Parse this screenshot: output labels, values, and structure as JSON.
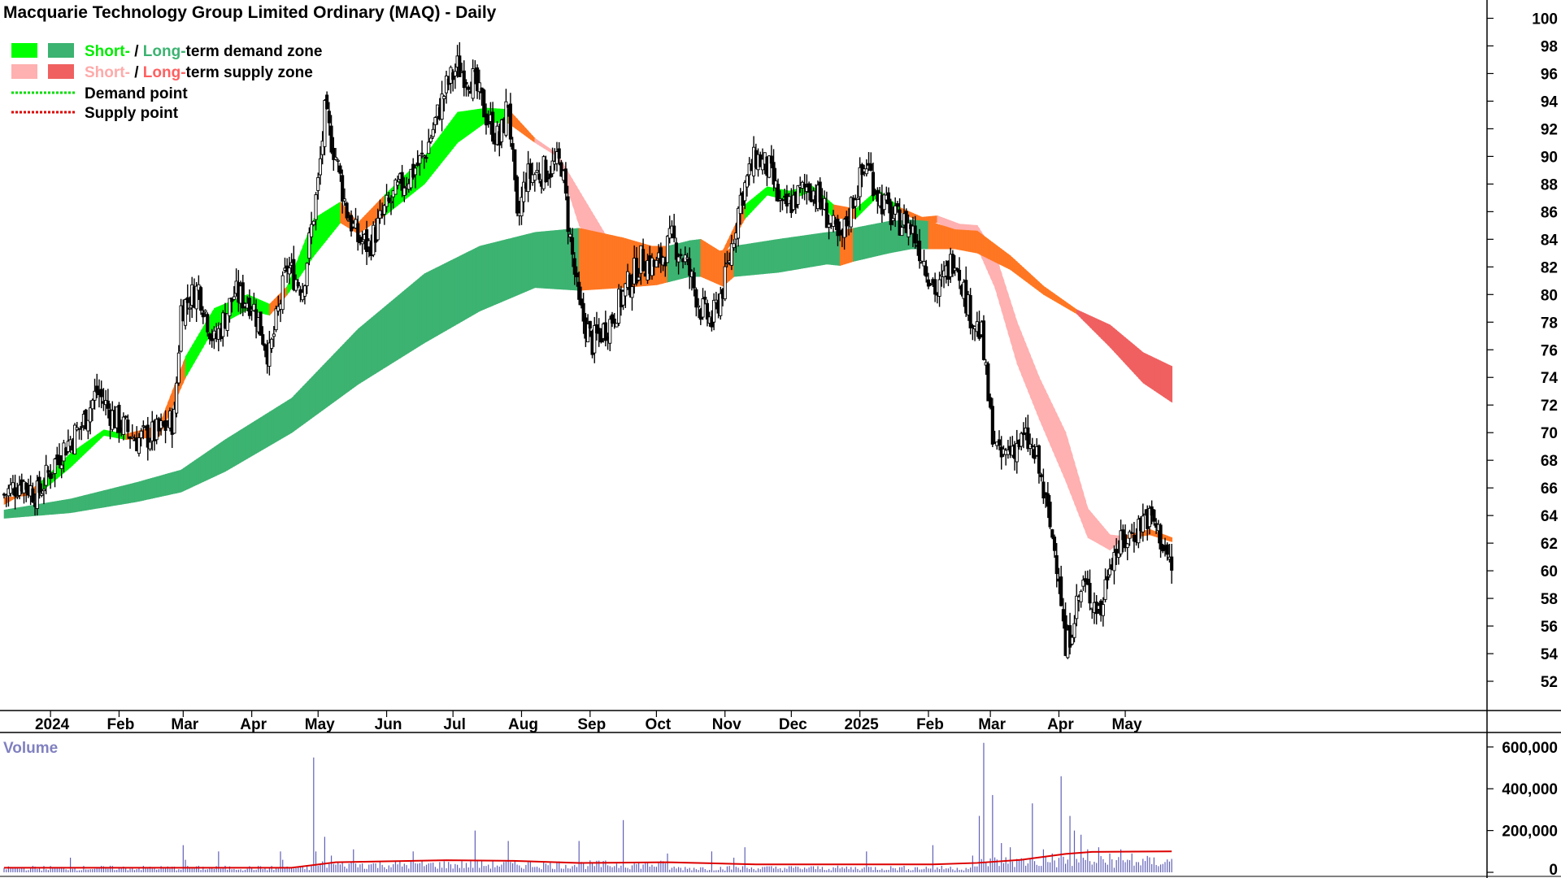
{
  "chart_data": {
    "type": "candlestick",
    "title": "Macquarie Technology Group Limited Ordinary (MAQ) - Daily",
    "legend": {
      "placement": "top-left",
      "items": [
        {
          "parts": [
            "Short-",
            " / ",
            "Long-",
            "term demand zone"
          ],
          "colors": [
            "#00ee00",
            "#000000",
            "#3cb371",
            "#000000"
          ],
          "swatches": [
            "#00ff00",
            "#3cb371"
          ],
          "line": false
        },
        {
          "parts": [
            "Short-",
            " / ",
            "Long-",
            "term supply zone"
          ],
          "colors": [
            "#ffaaaa",
            "#000000",
            "#ff6060",
            "#000000"
          ],
          "swatches": [
            "#ffb0b0",
            "#f06060"
          ],
          "line": false
        },
        {
          "parts": [
            "Demand point"
          ],
          "colors": [
            "#000000"
          ],
          "line": true,
          "line_color": "#00dd00"
        },
        {
          "parts": [
            "Supply point"
          ],
          "colors": [
            "#000000"
          ],
          "line": true,
          "line_color": "#dd0000"
        }
      ]
    },
    "y_axis": {
      "ylim": [
        51,
        100.5
      ],
      "ticks": [
        52,
        54,
        56,
        58,
        60,
        62,
        64,
        66,
        68,
        70,
        72,
        74,
        76,
        78,
        80,
        82,
        84,
        86,
        88,
        90,
        92,
        94,
        96,
        98,
        100
      ]
    },
    "x_axis": {
      "range_days": [
        0,
        506
      ],
      "months": [
        {
          "label": "2024",
          "day": 21
        },
        {
          "label": "Feb",
          "day": 52
        },
        {
          "label": "Mar",
          "day": 81
        },
        {
          "label": "Apr",
          "day": 112
        },
        {
          "label": "May",
          "day": 142
        },
        {
          "label": "Jun",
          "day": 173
        },
        {
          "label": "Jul",
          "day": 203
        },
        {
          "label": "Aug",
          "day": 234
        },
        {
          "label": "Sep",
          "day": 265
        },
        {
          "label": "Oct",
          "day": 295
        },
        {
          "label": "Nov",
          "day": 326
        },
        {
          "label": "Dec",
          "day": 356
        },
        {
          "label": "2025",
          "day": 387
        },
        {
          "label": "Feb",
          "day": 418
        },
        {
          "label": "Mar",
          "day": 446
        },
        {
          "label": "Apr",
          "day": 477
        },
        {
          "label": "May",
          "day": 507
        }
      ]
    },
    "price_keypoints": [
      [
        0,
        65.5
      ],
      [
        8,
        66.5
      ],
      [
        15,
        65.5
      ],
      [
        25,
        68.5
      ],
      [
        35,
        70.5
      ],
      [
        42,
        73
      ],
      [
        50,
        71
      ],
      [
        60,
        69.5
      ],
      [
        70,
        70
      ],
      [
        77,
        71
      ],
      [
        80,
        79
      ],
      [
        88,
        80.5
      ],
      [
        95,
        76.5
      ],
      [
        104,
        80
      ],
      [
        112,
        79.5
      ],
      [
        120,
        75.5
      ],
      [
        128,
        82
      ],
      [
        135,
        80.5
      ],
      [
        142,
        88
      ],
      [
        145,
        93
      ],
      [
        150,
        90
      ],
      [
        155,
        86
      ],
      [
        160,
        84
      ],
      [
        165,
        83.5
      ],
      [
        172,
        86
      ],
      [
        180,
        88
      ],
      [
        190,
        90
      ],
      [
        200,
        95
      ],
      [
        205,
        96.5
      ],
      [
        212,
        95.5
      ],
      [
        218,
        93
      ],
      [
        224,
        91
      ],
      [
        228,
        94
      ],
      [
        232,
        85
      ],
      [
        236,
        88.5
      ],
      [
        245,
        89
      ],
      [
        252,
        89.5
      ],
      [
        256,
        84
      ],
      [
        260,
        79
      ],
      [
        266,
        76.5
      ],
      [
        274,
        78
      ],
      [
        280,
        80
      ],
      [
        288,
        82.5
      ],
      [
        295,
        82
      ],
      [
        302,
        84
      ],
      [
        308,
        82.5
      ],
      [
        315,
        79
      ],
      [
        320,
        78
      ],
      [
        326,
        81
      ],
      [
        333,
        87
      ],
      [
        340,
        90
      ],
      [
        346,
        89
      ],
      [
        352,
        86
      ],
      [
        358,
        87
      ],
      [
        364,
        88
      ],
      [
        370,
        86.5
      ],
      [
        378,
        83.5
      ],
      [
        384,
        87
      ],
      [
        390,
        89.5
      ],
      [
        396,
        87
      ],
      [
        402,
        85.5
      ],
      [
        410,
        85
      ],
      [
        416,
        82.5
      ],
      [
        422,
        80
      ],
      [
        430,
        83
      ],
      [
        436,
        79
      ],
      [
        442,
        77
      ],
      [
        446,
        71
      ],
      [
        450,
        68
      ],
      [
        456,
        69
      ],
      [
        462,
        69.5
      ],
      [
        467,
        68
      ],
      [
        472,
        64
      ],
      [
        477,
        60
      ],
      [
        480,
        54
      ],
      [
        484,
        57
      ],
      [
        488,
        59
      ],
      [
        492,
        58
      ],
      [
        496,
        57
      ],
      [
        500,
        61
      ],
      [
        506,
        62
      ],
      [
        512,
        63
      ],
      [
        516,
        64
      ],
      [
        520,
        63.5
      ],
      [
        524,
        62
      ],
      [
        528,
        60
      ]
    ],
    "short_term_zone": [
      [
        0,
        65.3,
        64.8,
        "s"
      ],
      [
        15,
        65.5,
        66.2,
        "d"
      ],
      [
        30,
        67.5,
        68.5,
        "d"
      ],
      [
        45,
        69.8,
        70.2,
        "d"
      ],
      [
        55,
        69.5,
        69.9,
        "s"
      ],
      [
        70,
        69.7,
        70.5,
        "s"
      ],
      [
        82,
        74,
        75.5,
        "d"
      ],
      [
        95,
        77.6,
        79,
        "d"
      ],
      [
        110,
        78.9,
        80,
        "d"
      ],
      [
        120,
        78.5,
        79.3,
        "s"
      ],
      [
        128,
        80,
        80.6,
        "d"
      ],
      [
        140,
        82.8,
        85.5,
        "d"
      ],
      [
        152,
        85.2,
        86.7,
        "s"
      ],
      [
        160,
        84.4,
        85.2,
        "s"
      ],
      [
        172,
        85.7,
        87.2,
        "d"
      ],
      [
        190,
        88,
        90,
        "d"
      ],
      [
        205,
        91,
        93.2,
        "d"
      ],
      [
        218,
        92.5,
        93.5,
        "d"
      ],
      [
        228,
        92.4,
        93.4,
        "s"
      ],
      [
        240,
        91,
        91.3,
        "p"
      ],
      [
        250,
        90,
        90.2,
        "p"
      ],
      [
        260,
        85,
        87.5,
        "p"
      ],
      [
        275,
        81,
        83.5,
        "p"
      ],
      [
        285,
        81.6,
        83.5,
        "s"
      ],
      [
        300,
        82.7,
        83.5,
        "s"
      ],
      [
        315,
        82.2,
        82.9,
        "s"
      ],
      [
        325,
        82.7,
        83.2,
        "s"
      ],
      [
        335,
        85.5,
        86.5,
        "d"
      ],
      [
        345,
        87.2,
        87.8,
        "d"
      ],
      [
        355,
        86.8,
        87.5,
        "d"
      ],
      [
        365,
        87.5,
        87.9,
        "d"
      ],
      [
        375,
        85.5,
        86.5,
        "s"
      ],
      [
        385,
        85.5,
        86.2,
        "d"
      ],
      [
        395,
        87.1,
        87.6,
        "d"
      ],
      [
        405,
        86,
        86.3,
        "s"
      ],
      [
        415,
        85.2,
        85.6,
        "s"
      ],
      [
        422,
        85.2,
        85.7,
        "p"
      ],
      [
        432,
        84.4,
        85.1,
        "p"
      ],
      [
        440,
        83.4,
        85,
        "p"
      ],
      [
        448,
        80.5,
        83,
        "p"
      ],
      [
        458,
        75,
        78,
        "p"
      ],
      [
        468,
        71,
        74,
        "p"
      ],
      [
        480,
        66.5,
        70,
        "p"
      ],
      [
        490,
        62.4,
        64.5,
        "p"
      ],
      [
        500,
        61.5,
        62.6,
        "p"
      ],
      [
        506,
        62.3,
        62.5,
        "s"
      ],
      [
        518,
        62.6,
        63,
        "s"
      ],
      [
        528,
        62.1,
        62.4,
        "s"
      ]
    ],
    "long_term_zone": [
      [
        0,
        63.8,
        64.4,
        "d"
      ],
      [
        30,
        64.2,
        65.2,
        "d"
      ],
      [
        60,
        65,
        66.4,
        "d"
      ],
      [
        80,
        65.7,
        67.3,
        "d"
      ],
      [
        100,
        67.2,
        69.5,
        "d"
      ],
      [
        130,
        70,
        72.5,
        "d"
      ],
      [
        160,
        73.5,
        77.5,
        "d"
      ],
      [
        190,
        76.5,
        81.5,
        "d"
      ],
      [
        215,
        78.8,
        83.5,
        "d"
      ],
      [
        240,
        80.5,
        84.5,
        "d"
      ],
      [
        260,
        80.3,
        84.8,
        "s"
      ],
      [
        280,
        80.5,
        84.1,
        "s"
      ],
      [
        295,
        80.7,
        83.4,
        "s"
      ],
      [
        300,
        80.9,
        83.5,
        "d"
      ],
      [
        310,
        81.3,
        83.9,
        "d"
      ],
      [
        315,
        81.3,
        84,
        "s"
      ],
      [
        325,
        80.6,
        83,
        "s"
      ],
      [
        330,
        81.3,
        83.5,
        "d"
      ],
      [
        350,
        81.6,
        84,
        "d"
      ],
      [
        372,
        82.2,
        84.5,
        "d"
      ],
      [
        378,
        82.1,
        84.6,
        "s"
      ],
      [
        384,
        82.4,
        84.8,
        "d"
      ],
      [
        400,
        83,
        85.3,
        "d"
      ],
      [
        410,
        83.3,
        85.4,
        "d"
      ],
      [
        418,
        83.3,
        85.3,
        "s"
      ],
      [
        430,
        83.3,
        84.7,
        "s"
      ],
      [
        440,
        83,
        84.6,
        "s"
      ],
      [
        455,
        81.8,
        82.8,
        "s"
      ],
      [
        470,
        80,
        80.6,
        "s"
      ],
      [
        485,
        78.6,
        78.9,
        "r"
      ],
      [
        500,
        76.2,
        77.8,
        "r"
      ],
      [
        515,
        73.6,
        75.8,
        "r"
      ],
      [
        528,
        72.2,
        74.8,
        "r"
      ]
    ],
    "volume": {
      "title": "Volume",
      "ylim": [
        0,
        650000
      ],
      "ticks": [
        {
          "value": 0,
          "label": "0"
        },
        {
          "value": 200000,
          "label": "200,000"
        },
        {
          "value": 400000,
          "label": "400,000"
        },
        {
          "value": 600000,
          "label": "600,000"
        }
      ],
      "baseline": 20000,
      "spikes": [
        [
          30,
          70000
        ],
        [
          81,
          130000
        ],
        [
          82,
          60000
        ],
        [
          97,
          100000
        ],
        [
          125,
          100000
        ],
        [
          126,
          60000
        ],
        [
          140,
          550000
        ],
        [
          141,
          100000
        ],
        [
          145,
          170000
        ],
        [
          148,
          80000
        ],
        [
          158,
          110000
        ],
        [
          185,
          100000
        ],
        [
          213,
          200000
        ],
        [
          228,
          150000
        ],
        [
          260,
          150000
        ],
        [
          280,
          250000
        ],
        [
          300,
          90000
        ],
        [
          320,
          100000
        ],
        [
          330,
          70000
        ],
        [
          335,
          120000
        ],
        [
          390,
          100000
        ],
        [
          420,
          130000
        ],
        [
          438,
          80000
        ],
        [
          441,
          270000
        ],
        [
          443,
          620000
        ],
        [
          447,
          370000
        ],
        [
          451,
          140000
        ],
        [
          455,
          120000
        ],
        [
          465,
          330000
        ],
        [
          470,
          110000
        ],
        [
          474,
          90000
        ],
        [
          478,
          460000
        ],
        [
          482,
          270000
        ],
        [
          484,
          200000
        ],
        [
          487,
          180000
        ],
        [
          490,
          110000
        ],
        [
          495,
          120000
        ],
        [
          500,
          90000
        ],
        [
          505,
          110000
        ],
        [
          510,
          90000
        ]
      ],
      "ma_line": [
        [
          0,
          22000
        ],
        [
          130,
          22000
        ],
        [
          150,
          48000
        ],
        [
          200,
          58000
        ],
        [
          230,
          55000
        ],
        [
          260,
          45000
        ],
        [
          300,
          48000
        ],
        [
          340,
          38000
        ],
        [
          420,
          38000
        ],
        [
          440,
          45000
        ],
        [
          460,
          60000
        ],
        [
          480,
          88000
        ],
        [
          492,
          98000
        ],
        [
          528,
          100000
        ]
      ]
    }
  }
}
